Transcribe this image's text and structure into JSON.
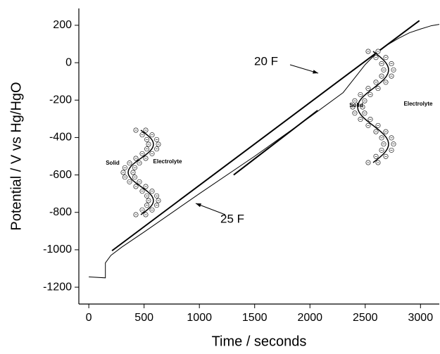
{
  "chart_data": {
    "type": "line",
    "x_label": "Time / seconds",
    "y_label": "Potential / V vs Hg/HgO",
    "xlim": [
      -90,
      3170
    ],
    "ylim": [
      -1290,
      290
    ],
    "xticks": [
      0,
      500,
      1000,
      1500,
      2000,
      2500,
      3000
    ],
    "yticks": [
      200,
      0,
      -200,
      -400,
      -600,
      -800,
      -1000,
      -1200
    ],
    "series": [
      {
        "color": "#000000",
        "x": [
          0,
          150,
          150,
          200,
          300,
          500,
          1000,
          1500,
          2000,
          2300,
          2500,
          2600,
          2700,
          2800,
          2900,
          3000,
          3100,
          3170
        ],
        "values": [
          -1145,
          -1150,
          -1070,
          -1030,
          -985,
          -905,
          -700,
          -500,
          -290,
          -160,
          -10,
          50,
          95,
          130,
          160,
          180,
          198,
          205
        ]
      },
      {
        "color": "#000000",
        "x": [
          210,
          2990
        ],
        "values": [
          -1005,
          225
        ]
      },
      {
        "color": "#000000",
        "x": [
          1310,
          2070
        ],
        "values": [
          -600,
          -255
        ]
      }
    ],
    "annotations": [
      "20 F",
      "25 F"
    ],
    "insets": [
      {
        "solid": "Solid",
        "electrolyte": "Electrolyte"
      },
      {
        "solid": "Solid",
        "electrolyte": "Electrolyte"
      }
    ]
  }
}
